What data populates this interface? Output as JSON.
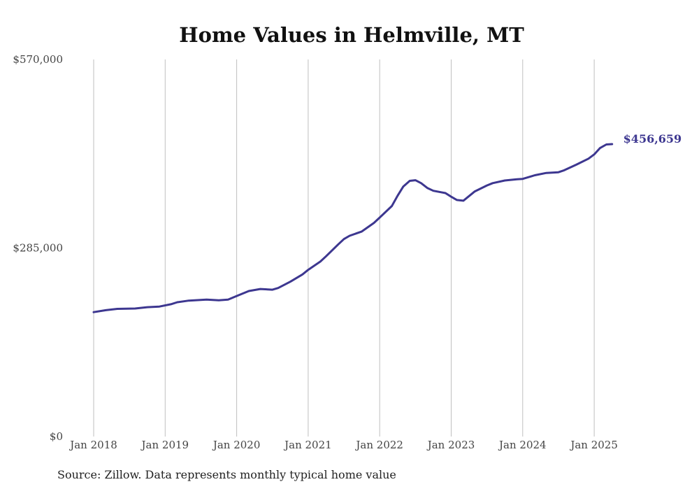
{
  "chart_data": {
    "type": "line",
    "title": "Home Values in Helmville, MT",
    "xlabel": "",
    "ylabel": "",
    "ylim": [
      0,
      570000
    ],
    "yticks": [
      {
        "value": 0,
        "label": "$0"
      },
      {
        "value": 285000,
        "label": "$285,000"
      },
      {
        "value": 570000,
        "label": "$570,000"
      }
    ],
    "xticks": [
      {
        "value": 2018.0,
        "label": "Jan 2018"
      },
      {
        "value": 2019.0,
        "label": "Jan 2019"
      },
      {
        "value": 2020.0,
        "label": "Jan 2020"
      },
      {
        "value": 2021.0,
        "label": "Jan 2021"
      },
      {
        "value": 2022.0,
        "label": "Jan 2022"
      },
      {
        "value": 2023.0,
        "label": "Jan 2023"
      },
      {
        "value": 2024.0,
        "label": "Jan 2024"
      },
      {
        "value": 2025.0,
        "label": "Jan 2025"
      }
    ],
    "xlim": [
      2017.9,
      2025.4
    ],
    "grid": "vertical",
    "series": [
      {
        "name": "",
        "color": "#3d3790",
        "end_label": "$456,659",
        "points": [
          [
            2018.0,
            188000
          ],
          [
            2018.17,
            191000
          ],
          [
            2018.33,
            193000
          ],
          [
            2018.58,
            193500
          ],
          [
            2018.75,
            195500
          ],
          [
            2018.92,
            196500
          ],
          [
            2019.08,
            200000
          ],
          [
            2019.17,
            203000
          ],
          [
            2019.33,
            205500
          ],
          [
            2019.58,
            207000
          ],
          [
            2019.75,
            206000
          ],
          [
            2019.88,
            207000
          ],
          [
            2020.0,
            212500
          ],
          [
            2020.17,
            220000
          ],
          [
            2020.33,
            223000
          ],
          [
            2020.5,
            222000
          ],
          [
            2020.58,
            224500
          ],
          [
            2020.75,
            234000
          ],
          [
            2020.92,
            245000
          ],
          [
            2021.0,
            252000
          ],
          [
            2021.17,
            264500
          ],
          [
            2021.25,
            272500
          ],
          [
            2021.42,
            290500
          ],
          [
            2021.5,
            298500
          ],
          [
            2021.58,
            303500
          ],
          [
            2021.75,
            310000
          ],
          [
            2021.92,
            323000
          ],
          [
            2022.0,
            331000
          ],
          [
            2022.17,
            348500
          ],
          [
            2022.25,
            364000
          ],
          [
            2022.33,
            378000
          ],
          [
            2022.42,
            386500
          ],
          [
            2022.5,
            387500
          ],
          [
            2022.58,
            383000
          ],
          [
            2022.67,
            375500
          ],
          [
            2022.75,
            371500
          ],
          [
            2022.92,
            368000
          ],
          [
            2023.0,
            362500
          ],
          [
            2023.08,
            357500
          ],
          [
            2023.17,
            356500
          ],
          [
            2023.33,
            370500
          ],
          [
            2023.5,
            379500
          ],
          [
            2023.58,
            383000
          ],
          [
            2023.75,
            387000
          ],
          [
            2023.92,
            389000
          ],
          [
            2024.0,
            389500
          ],
          [
            2024.17,
            395000
          ],
          [
            2024.33,
            398500
          ],
          [
            2024.5,
            399500
          ],
          [
            2024.58,
            402500
          ],
          [
            2024.75,
            411000
          ],
          [
            2024.92,
            420000
          ],
          [
            2025.0,
            426500
          ],
          [
            2025.08,
            436000
          ],
          [
            2025.17,
            441500
          ],
          [
            2025.25,
            442000
          ]
        ]
      }
    ],
    "source": "Source: Zillow. Data represents monthly typical home value"
  }
}
